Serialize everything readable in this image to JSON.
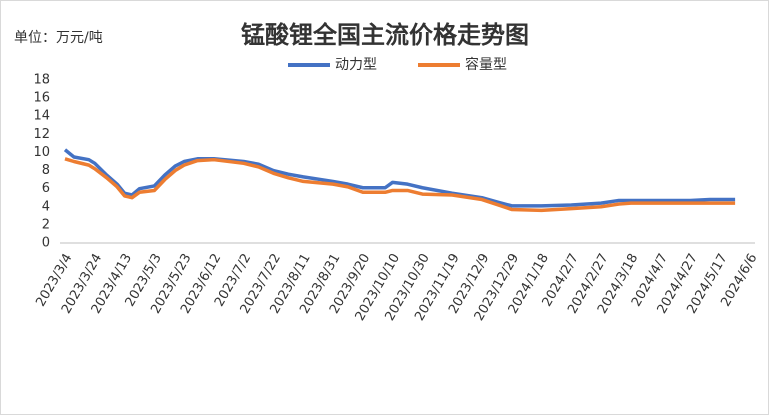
{
  "chart_data": {
    "type": "line",
    "title": "锰酸锂全国主流价格走势图",
    "unit_label": "单位：万元/吨",
    "x": [
      "2023/3/4",
      "2023/3/10",
      "2023/3/20",
      "2023/3/24",
      "2023/4/1",
      "2023/4/8",
      "2023/4/13",
      "2023/4/18",
      "2023/4/23",
      "2023/5/3",
      "2023/5/10",
      "2023/5/17",
      "2023/5/23",
      "2023/6/1",
      "2023/6/12",
      "2023/7/2",
      "2023/7/12",
      "2023/7/22",
      "2023/8/1",
      "2023/8/11",
      "2023/8/31",
      "2023/9/10",
      "2023/9/20",
      "2023/10/5",
      "2023/10/10",
      "2023/10/20",
      "2023/10/30",
      "2023/11/19",
      "2023/12/9",
      "2023/12/20",
      "2023/12/29",
      "2024/1/18",
      "2024/2/7",
      "2024/2/27",
      "2024/3/10",
      "2024/3/18",
      "2024/4/7",
      "2024/4/27",
      "2024/5/10",
      "2024/5/27"
    ],
    "series": [
      {
        "name": "动力型",
        "color": "#4472c4",
        "values": [
          10.3,
          9.5,
          9.2,
          8.8,
          7.5,
          6.5,
          5.5,
          5.3,
          6,
          6.3,
          7.5,
          8.5,
          9,
          9.3,
          9.3,
          9,
          8.7,
          8,
          7.6,
          7.3,
          6.8,
          6.5,
          6.1,
          6.1,
          6.7,
          6.5,
          6.1,
          5.5,
          5,
          4.5,
          4.1,
          4.1,
          4.2,
          4.4,
          4.7,
          4.7,
          4.7,
          4.7,
          4.8,
          4.8
        ]
      },
      {
        "name": "容量型",
        "color": "#ed7d31",
        "values": [
          9.3,
          9,
          8.6,
          8.2,
          7.2,
          6.2,
          5.2,
          5,
          5.6,
          5.8,
          7,
          8,
          8.6,
          9.1,
          9.2,
          8.8,
          8.4,
          7.7,
          7.2,
          6.8,
          6.5,
          6.2,
          5.6,
          5.6,
          5.8,
          5.8,
          5.4,
          5.3,
          4.8,
          4.2,
          3.7,
          3.6,
          3.8,
          4,
          4.3,
          4.4,
          4.4,
          4.4,
          4.4,
          4.4
        ]
      }
    ],
    "xlim": [
      "2023/3/4",
      "2024/6/6"
    ],
    "xticks": [
      "2023/3/4",
      "2023/3/24",
      "2023/4/13",
      "2023/5/3",
      "2023/5/23",
      "2023/6/12",
      "2023/7/2",
      "2023/7/22",
      "2023/8/11",
      "2023/8/31",
      "2023/9/20",
      "2023/10/10",
      "2023/10/30",
      "2023/11/19",
      "2023/12/9",
      "2023/12/29",
      "2024/1/18",
      "2024/2/7",
      "2024/2/27",
      "2024/3/18",
      "2024/4/7",
      "2024/4/27",
      "2024/5/17",
      "2024/6/6"
    ],
    "ylim": [
      0,
      18
    ],
    "yticks": [
      0,
      2,
      4,
      6,
      8,
      10,
      12,
      14,
      16,
      18
    ],
    "grid": false,
    "legend": "top"
  }
}
